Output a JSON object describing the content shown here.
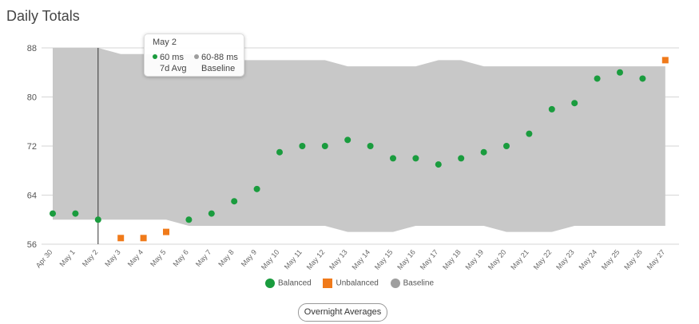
{
  "header": {
    "title": "Daily Totals"
  },
  "tooltip": {
    "date": "May 2",
    "value": "60 ms",
    "value_label": "7d Avg",
    "range": "60-88 ms",
    "range_label": "Baseline"
  },
  "legend": {
    "balanced": "Balanced",
    "unbalanced": "Unbalanced",
    "baseline": "Baseline"
  },
  "button": {
    "label": "Overnight Averages"
  },
  "colors": {
    "balanced": "#1a9c3e",
    "unbalanced": "#f07a1a",
    "baseline_band": "#c8c8c8",
    "baseline_legend": "#9e9e9e"
  },
  "chart_data": {
    "type": "scatter",
    "title": "Daily Totals",
    "categories": [
      "Apr 30",
      "May 1",
      "May 2",
      "May 3",
      "May 4",
      "May 5",
      "May 6",
      "May 7",
      "May 8",
      "May 9",
      "May 10",
      "May 11",
      "May 12",
      "May 13",
      "May 14",
      "May 15",
      "May 16",
      "May 17",
      "May 18",
      "May 19",
      "May 20",
      "May 21",
      "May 22",
      "May 23",
      "May 24",
      "May 25",
      "May 26",
      "May 27"
    ],
    "ylim": [
      56,
      88
    ],
    "yticks": [
      56,
      64,
      72,
      80,
      88
    ],
    "grid": true,
    "legend_position": "bottom",
    "series": [
      {
        "name": "Balanced",
        "marker": "circle",
        "values": [
          61,
          61,
          60,
          null,
          null,
          null,
          60,
          61,
          63,
          65,
          71,
          72,
          72,
          73,
          72,
          70,
          70,
          69,
          70,
          71,
          72,
          74,
          78,
          79,
          83,
          84,
          83,
          null
        ]
      },
      {
        "name": "Unbalanced",
        "marker": "square",
        "values": [
          null,
          null,
          null,
          57,
          57,
          58,
          null,
          null,
          null,
          null,
          null,
          null,
          null,
          null,
          null,
          null,
          null,
          null,
          null,
          null,
          null,
          null,
          null,
          null,
          null,
          null,
          null,
          86
        ]
      },
      {
        "name": "Baseline",
        "type": "area-range",
        "low": [
          60,
          60,
          60,
          60,
          60,
          60,
          59,
          59,
          59,
          59,
          59,
          59,
          59,
          58,
          58,
          58,
          59,
          59,
          59,
          59,
          58,
          58,
          58,
          59,
          59,
          59,
          59,
          59
        ],
        "high": [
          88,
          88,
          88,
          87,
          87,
          87,
          87,
          86,
          86,
          86,
          86,
          86,
          86,
          85,
          85,
          85,
          85,
          86,
          86,
          85,
          85,
          85,
          85,
          85,
          85,
          85,
          85,
          85
        ]
      }
    ],
    "hover_category": "May 2"
  }
}
